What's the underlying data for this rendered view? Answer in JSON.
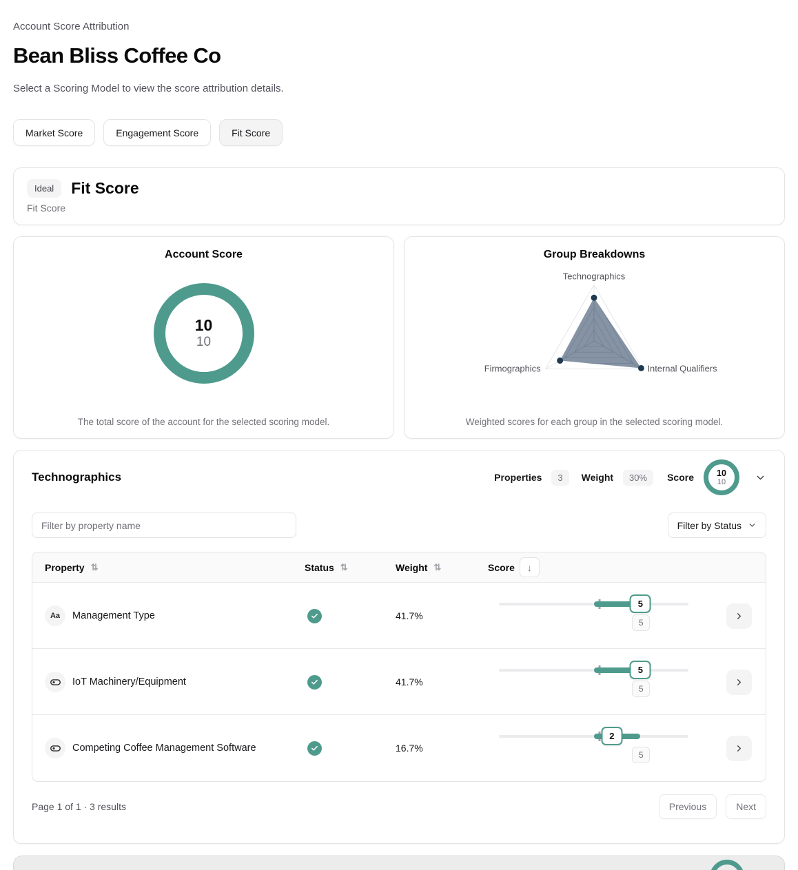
{
  "page": {
    "eyebrow": "Account Score Attribution",
    "title": "Bean Bliss Coffee Co",
    "subtitle": "Select a Scoring Model to view the score attribution details."
  },
  "tabs": [
    {
      "label": "Market Score",
      "selected": false
    },
    {
      "label": "Engagement Score",
      "selected": false
    },
    {
      "label": "Fit Score",
      "selected": true
    }
  ],
  "model_card": {
    "badge": "Ideal",
    "title": "Fit Score",
    "subtitle": "Fit Score"
  },
  "account_score": {
    "title": "Account Score",
    "score": "10",
    "max": "10",
    "description": "The total score of the account for the selected scoring model."
  },
  "group_breakdowns": {
    "title": "Group Breakdowns",
    "description": "Weighted scores for each group in the selected scoring model."
  },
  "chart_data": [
    {
      "type": "donut",
      "title": "Account Score",
      "value": 10,
      "max": 10,
      "color": "#4e9b8d"
    },
    {
      "type": "radar",
      "title": "Group Breakdowns",
      "categories": [
        "Technographics",
        "Internal Qualifiers",
        "Firmographics"
      ],
      "values": [
        0.77,
        0.97,
        0.7
      ],
      "scale": [
        0,
        1
      ],
      "grid_levels": [
        0.2,
        0.4,
        0.6,
        0.8,
        1.0
      ],
      "fill_color": "#64748b",
      "dot_color": "#1f3a4d",
      "legend_position": "none"
    }
  ],
  "group_section": {
    "title": "Technographics",
    "properties_label": "Properties",
    "properties_count": "3",
    "weight_label": "Weight",
    "weight_value": "30%",
    "score_label": "Score",
    "score": "10",
    "score_max": "10",
    "filter_placeholder": "Filter by property name",
    "status_filter_label": "Filter by Status",
    "table": {
      "columns": {
        "property": "Property",
        "status": "Status",
        "weight": "Weight",
        "score": "Score"
      },
      "sort_icon": "⇅",
      "score_sort_icon": "↓",
      "rows": [
        {
          "icon": "text-type",
          "icon_glyph": "Aa",
          "name": "Management Type",
          "status": "passed",
          "weight": "41.7%",
          "score": "5",
          "score_max": "5",
          "slider": {
            "tick_pct": 50,
            "bar_end_pct": 76,
            "value_pct": 74.7,
            "max_pct": 75
          }
        },
        {
          "icon": "boolean-toggle",
          "icon_glyph": "",
          "name": "IoT Machinery/Equipment",
          "status": "passed",
          "weight": "41.7%",
          "score": "5",
          "score_max": "5",
          "slider": {
            "tick_pct": 50,
            "bar_end_pct": 76,
            "value_pct": 74.7,
            "max_pct": 75
          }
        },
        {
          "icon": "boolean-toggle",
          "icon_glyph": "",
          "name": "Competing Coffee Management Software",
          "status": "passed",
          "weight": "16.7%",
          "score": "2",
          "score_max": "5",
          "slider": {
            "tick_pct": 50,
            "bar_end_pct": 74.5,
            "value_pct": 59.6,
            "max_pct": 75
          }
        }
      ]
    },
    "pagination": {
      "summary": "Page 1 of 1 · 3 results",
      "previous_label": "Previous",
      "next_label": "Next"
    }
  },
  "colors": {
    "accent_teal": "#4e9b8d",
    "radar_fill": "#64748b",
    "radar_dot": "#1f3a4d",
    "border": "#e4e4e7",
    "muted_text": "#71717a"
  }
}
